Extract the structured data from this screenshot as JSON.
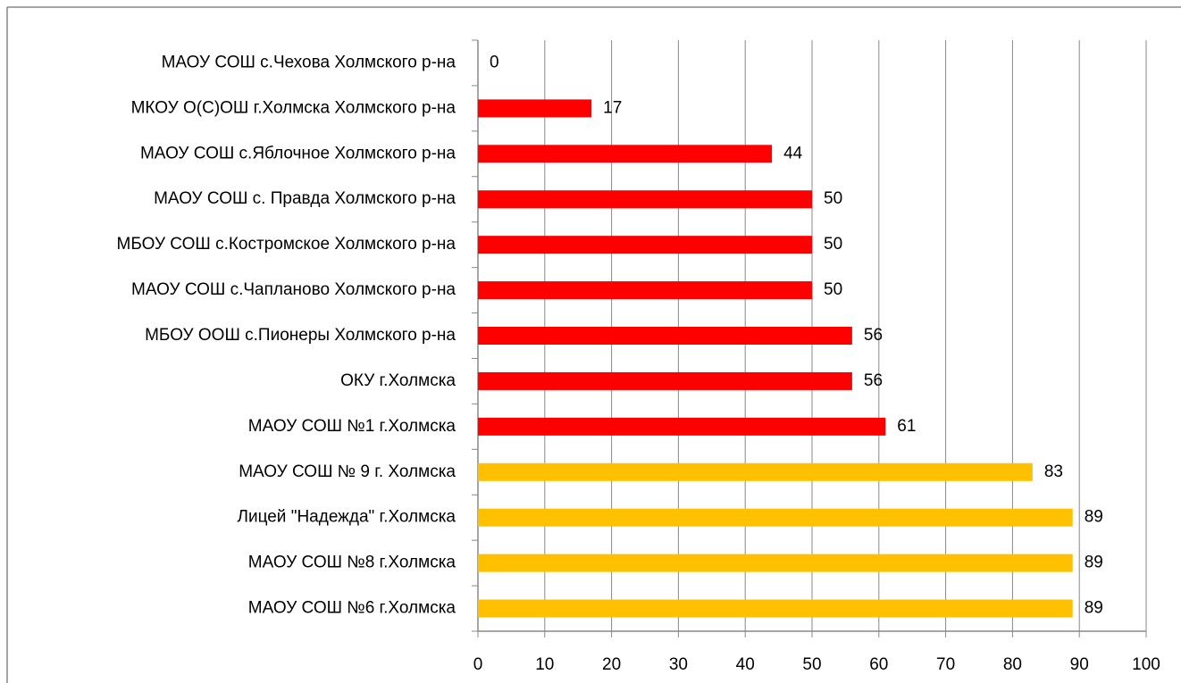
{
  "chart_data": {
    "type": "barh",
    "categories": [
      "МАОУ СОШ с.Чехова Холмского р-на",
      "МКОУ О(С)ОШ г.Холмска Холмского р-на",
      "МАОУ СОШ с.Яблочное Холмского р-на",
      "МАОУ СОШ с. Правда Холмского р-на",
      "МБОУ СОШ с.Костромское Холмского р-на",
      "МАОУ СОШ с.Чапланово Холмского р-на",
      "МБОУ ООШ с.Пионеры Холмского р-на",
      "ОКУ г.Холмска",
      "МАОУ СОШ №1 г.Холмска",
      "МАОУ СОШ № 9 г. Холмска",
      "Лицей \"Надежда\" г.Холмска",
      "МАОУ СОШ №8 г.Холмска",
      "МАОУ СОШ №6 г.Холмска"
    ],
    "values": [
      0,
      17,
      44,
      50,
      50,
      50,
      56,
      56,
      61,
      83,
      89,
      89,
      89
    ],
    "colors": [
      "#ff0000",
      "#ff0000",
      "#ff0000",
      "#ff0000",
      "#ff0000",
      "#ff0000",
      "#ff0000",
      "#ff0000",
      "#ff0000",
      "#ffc000",
      "#ffc000",
      "#ffc000",
      "#ffc000"
    ],
    "xlim": [
      0,
      100
    ],
    "xticks": [
      0,
      10,
      20,
      30,
      40,
      50,
      60,
      70,
      80,
      90,
      100
    ],
    "grid": true
  }
}
